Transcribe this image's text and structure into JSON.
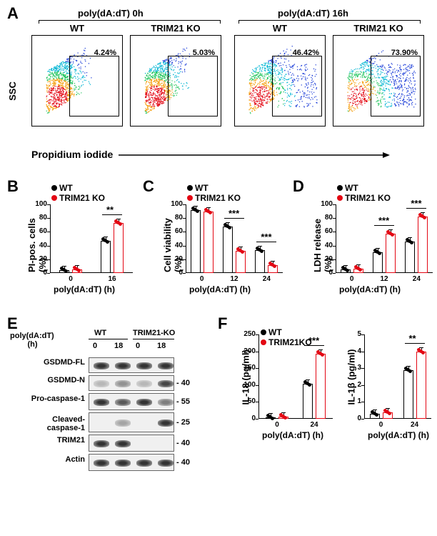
{
  "panelA": {
    "label": "A",
    "header_left": "poly(dA:dT) 0h",
    "header_right": "poly(dA:dT) 16h",
    "plots": [
      {
        "title": "WT",
        "gate_pct": "4.24%"
      },
      {
        "title": "TRIM21 KO",
        "gate_pct": "5.03%"
      },
      {
        "title": "WT",
        "gate_pct": "46.42%"
      },
      {
        "title": "TRIM21 KO",
        "gate_pct": "73.90%"
      }
    ],
    "y_axis": "SSC",
    "x_axis": "Propidium iodide"
  },
  "panelB": {
    "label": "B",
    "legend": [
      "WT",
      "TRIM21 KO"
    ],
    "ylabel": "PI-pos. cells (%)",
    "xlabel": "poly(dA:dT) (h)",
    "xticks": [
      "0",
      "16"
    ],
    "ylim": [
      0,
      100
    ],
    "ytick_step": 20,
    "data": {
      "WT": [
        4,
        47
      ],
      "KO": [
        5,
        73
      ]
    },
    "colors": {
      "WT": "#000000",
      "KO": "#e30613"
    },
    "sig": [
      {
        "x": 1,
        "text": "**"
      }
    ]
  },
  "panelC": {
    "label": "C",
    "legend": [
      "WT",
      "TRIM21 KO"
    ],
    "ylabel": "Cell viability (%)",
    "xlabel": "poly(dA:dT) (h)",
    "xticks": [
      "0",
      "12",
      "24"
    ],
    "ylim": [
      0,
      100
    ],
    "ytick_step": 20,
    "data": {
      "WT": [
        92,
        68,
        33
      ],
      "KO": [
        90,
        32,
        11
      ]
    },
    "colors": {
      "WT": "#000000",
      "KO": "#e30613"
    },
    "sig": [
      {
        "x": 1,
        "text": "***"
      },
      {
        "x": 2,
        "text": "***"
      }
    ]
  },
  "panelD": {
    "label": "D",
    "legend": [
      "WT",
      "TRIM21 KO"
    ],
    "ylabel": "LDH release (%)",
    "xlabel": "poly(dA:dT) (h)",
    "xticks": [
      "0",
      "12",
      "24"
    ],
    "ylim": [
      0,
      100
    ],
    "ytick_step": 20,
    "data": {
      "WT": [
        5,
        30,
        46
      ],
      "KO": [
        6,
        57,
        82
      ]
    },
    "colors": {
      "WT": "#000000",
      "KO": "#e30613"
    },
    "sig": [
      {
        "x": 1,
        "text": "***"
      },
      {
        "x": 2,
        "text": "***"
      }
    ]
  },
  "panelE": {
    "label": "E",
    "col_headers": [
      "WT",
      "TRIM21-KO"
    ],
    "time_label": "poly(dA:dT)\n(h)",
    "times": [
      "0",
      "18",
      "0",
      "18"
    ],
    "rows": [
      {
        "label": "GSDMD-FL",
        "mw": "",
        "bands": [
          1,
          1,
          1,
          1
        ]
      },
      {
        "label": "GSDMD-N",
        "mw": "40",
        "bands": [
          0.1,
          0.3,
          0.1,
          0.7
        ]
      },
      {
        "label": "Pro-caspase-1",
        "mw": "55",
        "bands": [
          1,
          0.6,
          1,
          0.4
        ]
      },
      {
        "label": "Cleaved-\ncaspase-1",
        "mw": "25",
        "bands": [
          0,
          0.2,
          0,
          0.9
        ]
      },
      {
        "label": "TRIM21",
        "mw": "40",
        "bands": [
          1,
          1,
          0,
          0
        ]
      },
      {
        "label": "Actin",
        "mw": "40",
        "bands": [
          1,
          1,
          1,
          1
        ]
      }
    ]
  },
  "panelF": {
    "label": "F",
    "legend": [
      "WT",
      "TRIM21KO"
    ],
    "charts": [
      {
        "ylabel": "IL-18 (pg/ml)",
        "xlabel": "poly(dA:dT) (h)",
        "xticks": [
          "0",
          "24"
        ],
        "ylim": [
          0,
          250
        ],
        "ytick_step": 50,
        "data": {
          "WT": [
            5,
            103
          ],
          "KO": [
            6,
            193
          ]
        },
        "sig": [
          {
            "x": 1,
            "text": "***"
          }
        ]
      },
      {
        "ylabel": "IL-1β (pg/ml)",
        "xlabel": "poly(dA:dT) (h)",
        "xticks": [
          "0",
          "24"
        ],
        "ylim": [
          0,
          5
        ],
        "ytick_step": 1,
        "data": {
          "WT": [
            0.3,
            2.9
          ],
          "KO": [
            0.4,
            4.0
          ]
        },
        "sig": [
          {
            "x": 1,
            "text": "**"
          }
        ]
      }
    ],
    "colors": {
      "WT": "#000000",
      "KO": "#e30613"
    }
  }
}
